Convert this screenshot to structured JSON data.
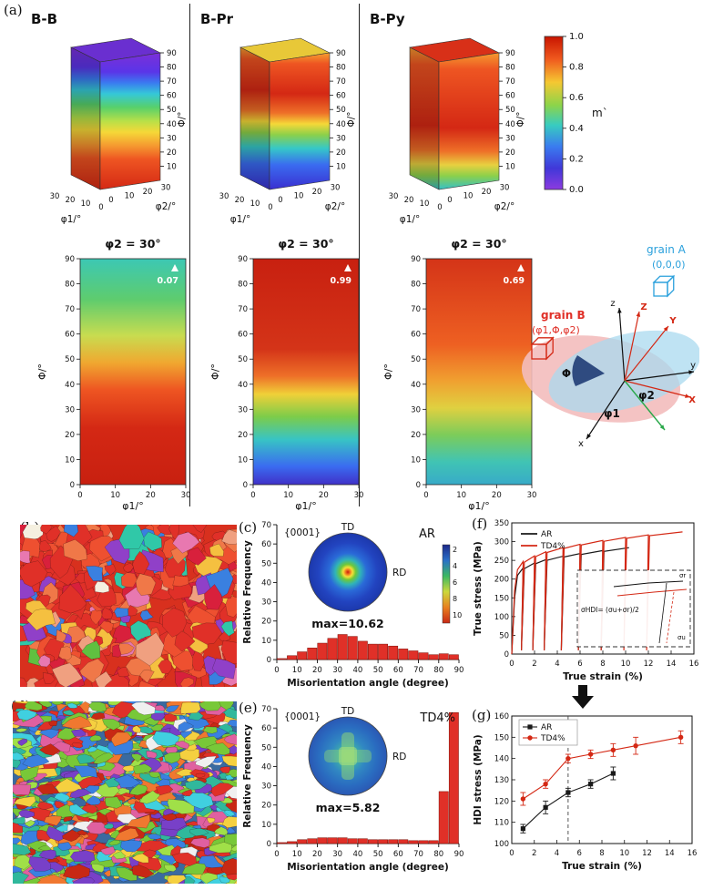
{
  "labels": {
    "a": "(a)",
    "b": "(b)",
    "c": "(c)",
    "d": "(d)",
    "e": "(e)",
    "f": "(f)",
    "g": "(g)"
  },
  "panel_a": {
    "plots3d": [
      {
        "title": "B-B",
        "top_color": "#6a2fd0",
        "face_stops": [
          [
            "0%",
            "#7b2fd8"
          ],
          [
            "14%",
            "#5a35e8"
          ],
          [
            "22%",
            "#3a7bf0"
          ],
          [
            "30%",
            "#35c8d8"
          ],
          [
            "40%",
            "#58d06a"
          ],
          [
            "50%",
            "#b8e048"
          ],
          [
            "58%",
            "#f5d838"
          ],
          [
            "68%",
            "#f59a30"
          ],
          [
            "78%",
            "#ee5522"
          ],
          [
            "100%",
            "#d42814"
          ]
        ]
      },
      {
        "title": "B-Pr",
        "top_color": "#e8c838",
        "face_stops": [
          [
            "0%",
            "#f5a030"
          ],
          [
            "8%",
            "#ee5522"
          ],
          [
            "30%",
            "#d42814"
          ],
          [
            "44%",
            "#ee7028"
          ],
          [
            "52%",
            "#f5d838"
          ],
          [
            "60%",
            "#8cd04a"
          ],
          [
            "70%",
            "#35c8c8"
          ],
          [
            "82%",
            "#3a6bf0"
          ],
          [
            "100%",
            "#3a2fd0"
          ]
        ]
      },
      {
        "title": "B-Py",
        "top_color": "#d83018",
        "face_stops": [
          [
            "0%",
            "#f59a30"
          ],
          [
            "12%",
            "#ee5522"
          ],
          [
            "55%",
            "#d42814"
          ],
          [
            "72%",
            "#ee7028"
          ],
          [
            "82%",
            "#e8d040"
          ],
          [
            "90%",
            "#8cd04a"
          ],
          [
            "100%",
            "#35c0c8"
          ]
        ]
      }
    ],
    "axes3d": {
      "phi_label": "Φ/°",
      "phi_ticks": [
        90,
        80,
        70,
        60,
        50,
        40,
        30,
        20,
        10
      ],
      "phi1_label": "φ1/°",
      "phi1_ticks": [
        30,
        20,
        10,
        0
      ],
      "phi2_label": "φ2/°",
      "phi2_ticks": [
        0,
        10,
        20,
        30
      ]
    },
    "colorbar": {
      "label": "m`",
      "ticks": [
        "1.0",
        "0.8",
        "0.6",
        "0.4",
        "0.2",
        "0.0"
      ],
      "stops": [
        [
          "0%",
          "#c81400"
        ],
        [
          "15%",
          "#f05a1e"
        ],
        [
          "30%",
          "#f5c832"
        ],
        [
          "45%",
          "#8cd44a"
        ],
        [
          "58%",
          "#38ccc0"
        ],
        [
          "72%",
          "#3a7bf0"
        ],
        [
          "86%",
          "#4038d8"
        ],
        [
          "100%",
          "#8c3ae0"
        ]
      ]
    },
    "maps2d": [
      {
        "title": "φ2 = 30°",
        "peak": "0.07",
        "stops": [
          [
            "0%",
            "#3cc8b4"
          ],
          [
            "18%",
            "#5ecc6e"
          ],
          [
            "34%",
            "#c8dc50"
          ],
          [
            "46%",
            "#f0a830"
          ],
          [
            "58%",
            "#ee5522"
          ],
          [
            "75%",
            "#d42814"
          ],
          [
            "100%",
            "#c82010"
          ]
        ]
      },
      {
        "title": "φ2 = 30°",
        "peak": "0.99",
        "stops": [
          [
            "0%",
            "#c82010"
          ],
          [
            "40%",
            "#d43418"
          ],
          [
            "52%",
            "#ee7028"
          ],
          [
            "60%",
            "#f0d038"
          ],
          [
            "70%",
            "#7ccc4a"
          ],
          [
            "80%",
            "#38c4c4"
          ],
          [
            "92%",
            "#3a6bf0"
          ],
          [
            "100%",
            "#4030c8"
          ]
        ]
      },
      {
        "title": "φ2 = 30°",
        "peak": "0.69",
        "stops": [
          [
            "0%",
            "#d43418"
          ],
          [
            "38%",
            "#ee6022"
          ],
          [
            "54%",
            "#f0a030"
          ],
          [
            "66%",
            "#e0d040"
          ],
          [
            "78%",
            "#7ccc5a"
          ],
          [
            "90%",
            "#40c4b4"
          ],
          [
            "100%",
            "#38aac8"
          ]
        ]
      }
    ],
    "maps_axes": {
      "y_label": "Φ/°",
      "y_ticks": [
        90,
        80,
        70,
        60,
        50,
        40,
        30,
        20,
        10,
        0
      ],
      "x_label": "φ1/°",
      "x_ticks": [
        0,
        10,
        20,
        30
      ]
    },
    "schematic": {
      "grain_a_label": "grain A",
      "grain_a_euler": "(0,0,0)",
      "grain_a_color": "#2aa0dc",
      "grain_b_label": "grain B",
      "grain_b_euler": "(φ1,Φ,φ2)",
      "grain_b_color": "#e03028",
      "phi": "Φ",
      "phi1": "φ1",
      "phi2": "φ2",
      "axis_labels": {
        "x": "x",
        "y": "y",
        "z": "z",
        "X": "X",
        "Y": "Y",
        "Z": "Z"
      }
    }
  },
  "ebsd": {
    "b": {
      "bg": "#d8301e",
      "count": 380,
      "seed": 7,
      "min_r": 5,
      "max_r": 14,
      "elong": 1.15,
      "palette": [
        [
          "#e03028",
          30
        ],
        [
          "#ee5030",
          14
        ],
        [
          "#f07848",
          6
        ],
        [
          "#d8203c",
          8
        ],
        [
          "#f0a080",
          3
        ],
        [
          "#f5c040",
          3
        ],
        [
          "#60c040",
          3
        ],
        [
          "#3a80e0",
          3
        ],
        [
          "#9040c8",
          3
        ],
        [
          "#f5f0e0",
          1
        ],
        [
          "#30c8a8",
          2
        ],
        [
          "#e878b0",
          2
        ]
      ]
    },
    "d": {
      "bg": "#3a6aa0",
      "count": 950,
      "seed": 13,
      "min_r": 2.5,
      "max_r": 8,
      "elong": 1.9,
      "palette": [
        [
          "#e03028",
          10
        ],
        [
          "#f07830",
          9
        ],
        [
          "#f5d040",
          9
        ],
        [
          "#78c838",
          10
        ],
        [
          "#30b89c",
          8
        ],
        [
          "#3a80e0",
          10
        ],
        [
          "#7840c8",
          8
        ],
        [
          "#e060a0",
          6
        ],
        [
          "#a0e048",
          6
        ],
        [
          "#40d0e0",
          6
        ],
        [
          "#c82814",
          6
        ],
        [
          "#f0f0f0",
          2
        ]
      ]
    }
  },
  "chart_data": [
    {
      "id": "hist_ar",
      "type": "bar",
      "panel": "c",
      "xlabel": "Misorientation angle (degree)",
      "ylabel": "Relative Frequency",
      "xlim": [
        0,
        90
      ],
      "ylim": [
        0,
        70
      ],
      "x_ticks": [
        0,
        10,
        20,
        30,
        40,
        50,
        60,
        70,
        80,
        90
      ],
      "y_ticks": [
        0,
        10,
        20,
        30,
        40,
        50,
        60,
        70
      ],
      "bin_width": 5,
      "values": [
        0.5,
        2,
        4,
        6,
        8.5,
        11,
        13,
        12,
        9.5,
        8,
        8,
        7,
        5.5,
        4.5,
        3.5,
        2.5,
        3,
        2.5
      ],
      "bar_color": "#e03028",
      "bar_edge": "#7a0a00",
      "annotations": {
        "pole_label": "{0001}",
        "td": "TD",
        "rd": "RD",
        "sample": "AR",
        "max": "max=10.62"
      },
      "pole_colorbar_ticks": [
        "2",
        "4",
        "6",
        "8",
        "10"
      ]
    },
    {
      "id": "hist_td",
      "type": "bar",
      "panel": "e",
      "xlabel": "Misorientation angle (degree)",
      "ylabel": "Relative Frequency",
      "xlim": [
        0,
        90
      ],
      "ylim": [
        0,
        70
      ],
      "x_ticks": [
        0,
        10,
        20,
        30,
        40,
        50,
        60,
        70,
        80,
        90
      ],
      "y_ticks": [
        0,
        10,
        20,
        30,
        40,
        50,
        60,
        70
      ],
      "bin_width": 5,
      "values": [
        0.5,
        1,
        2,
        2.5,
        3,
        3,
        3,
        2.5,
        2.5,
        2,
        2,
        2,
        2,
        1.5,
        1.5,
        1.5,
        27,
        68
      ],
      "bar_color": "#e03028",
      "bar_edge": "#7a0a00",
      "annotations": {
        "pole_label": "{0001}",
        "td": "TD",
        "rd": "RD",
        "sample": "TD4%",
        "max": "max=5.82"
      }
    },
    {
      "id": "stress_strain",
      "type": "line",
      "panel": "f",
      "xlabel": "True strain (%)",
      "ylabel": "True stress (MPa)",
      "xlim": [
        0,
        16
      ],
      "ylim": [
        0,
        350
      ],
      "x_ticks": [
        0,
        2,
        4,
        6,
        8,
        10,
        12,
        14,
        16
      ],
      "y_ticks": [
        0,
        50,
        100,
        150,
        200,
        250,
        300,
        350
      ],
      "legend": [
        {
          "name": "AR",
          "color": "#1a1a1a"
        },
        {
          "name": "TD4%",
          "color": "#d42814"
        }
      ],
      "series": [
        {
          "name": "AR",
          "color": "#1a1a1a",
          "points": [
            [
              0,
              0
            ],
            [
              0.25,
              150
            ],
            [
              0.5,
              210
            ],
            [
              1,
              230
            ],
            [
              0.85,
              10
            ],
            [
              1.1,
              228
            ],
            [
              2,
              243
            ],
            [
              1.85,
              10
            ],
            [
              2.1,
              241
            ],
            [
              3,
              252
            ],
            [
              2.85,
              10
            ],
            [
              3.1,
              250
            ],
            [
              4.5,
              261
            ],
            [
              4.35,
              10
            ],
            [
              4.6,
              259
            ],
            [
              6,
              268
            ],
            [
              5.85,
              10
            ],
            [
              6.1,
              266
            ],
            [
              8,
              276
            ],
            [
              7.85,
              10
            ],
            [
              8.1,
              274
            ],
            [
              10.3,
              284
            ]
          ]
        },
        {
          "name": "TD4%",
          "color": "#d42814",
          "points": [
            [
              0,
              0
            ],
            [
              0.25,
              170
            ],
            [
              0.5,
              225
            ],
            [
              1,
              247
            ],
            [
              0.85,
              10
            ],
            [
              1.1,
              245
            ],
            [
              2,
              262
            ],
            [
              1.85,
              10
            ],
            [
              2.1,
              260
            ],
            [
              3,
              273
            ],
            [
              2.85,
              10
            ],
            [
              3.1,
              271
            ],
            [
              4.5,
              284
            ],
            [
              4.35,
              10
            ],
            [
              4.6,
              282
            ],
            [
              6,
              293
            ],
            [
              5.85,
              10
            ],
            [
              6.1,
              291
            ],
            [
              8,
              303
            ],
            [
              7.85,
              10
            ],
            [
              8.1,
              301
            ],
            [
              10,
              311
            ],
            [
              9.85,
              10
            ],
            [
              10.1,
              309
            ],
            [
              12,
              318
            ],
            [
              11.85,
              10
            ],
            [
              12.1,
              316
            ],
            [
              15,
              326
            ]
          ]
        }
      ],
      "inset": {
        "formula": "σHDI= (σu+σr)/2",
        "sigma_r": "σr",
        "sigma_u": "σu"
      }
    },
    {
      "id": "hdi",
      "type": "scatter-line",
      "panel": "g",
      "xlabel": "True strain (%)",
      "ylabel": "HDI stress (MPa)",
      "xlim": [
        0,
        16
      ],
      "ylim": [
        100,
        160
      ],
      "x_ticks": [
        0,
        2,
        4,
        6,
        8,
        10,
        12,
        14,
        16
      ],
      "y_ticks": [
        100,
        110,
        120,
        130,
        140,
        150,
        160
      ],
      "vline_x": 5,
      "series": [
        {
          "name": "AR",
          "color": "#1a1a1a",
          "marker": "square",
          "x": [
            1,
            3,
            5,
            7,
            9
          ],
          "y": [
            107,
            117,
            124,
            128,
            133
          ],
          "yerr": [
            2,
            3,
            2,
            2,
            3
          ]
        },
        {
          "name": "TD4%",
          "color": "#d42814",
          "marker": "circle",
          "x": [
            1,
            3,
            5,
            7,
            9,
            11,
            15
          ],
          "y": [
            121,
            128,
            140,
            142,
            144,
            146,
            150
          ],
          "yerr": [
            3,
            2,
            2,
            2,
            3,
            4,
            3
          ]
        }
      ]
    }
  ]
}
